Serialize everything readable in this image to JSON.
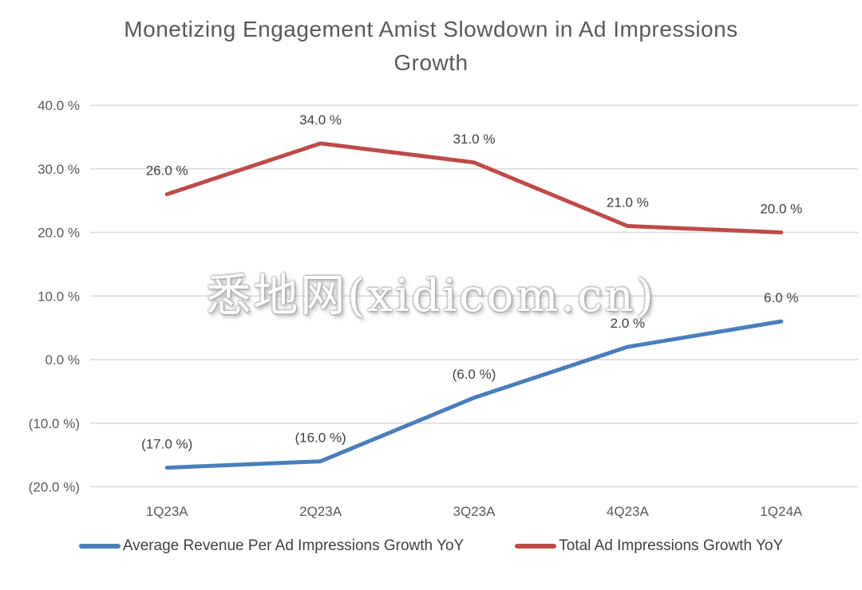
{
  "title": {
    "lines": [
      "Monetizing Engagement Amist Slowdown in Ad Impressions",
      "Growth"
    ]
  },
  "watermark": {
    "text": "悉地网(xidicom.cn)"
  },
  "colors": {
    "blue_series": "#4A7EBB",
    "red_series": "#BE4B48",
    "gridline": "#D9D9D9",
    "axis_text": "#595959",
    "data_label_text": "#404040",
    "title_text": "#595959"
  },
  "chart_data": {
    "type": "line",
    "title": "Monetizing Engagement Amist Slowdown in Ad Impressions Growth",
    "categories": [
      "1Q23A",
      "2Q23A",
      "3Q23A",
      "4Q23A",
      "1Q24A"
    ],
    "series": [
      {
        "name": "Average Revenue Per Ad Impressions Growth YoY",
        "color": "#4A7EBB",
        "values": [
          -17,
          -16,
          -6,
          2,
          6
        ],
        "point_labels": [
          "(17.0 %)",
          "(16.0 %)",
          "(6.0 %)",
          "2.0 %",
          "6.0 %"
        ]
      },
      {
        "name": "Total Ad Impressions Growth YoY",
        "color": "#BE4B48",
        "values": [
          26,
          34,
          31,
          21,
          20
        ],
        "point_labels": [
          "26.0 %",
          "34.0 %",
          "31.0 %",
          "21.0 %",
          "20.0 %"
        ]
      }
    ],
    "xlabel": "",
    "ylabel": "",
    "y_axis": {
      "range": [
        -20,
        40
      ],
      "tick_step": 10,
      "ticks": [
        {
          "value": 40,
          "label": "40.0 %"
        },
        {
          "value": 30,
          "label": "30.0 %"
        },
        {
          "value": 20,
          "label": "20.0 %"
        },
        {
          "value": 10,
          "label": "10.0 %"
        },
        {
          "value": 0,
          "label": "0.0 %"
        },
        {
          "value": -10,
          "label": "(10.0 %)"
        },
        {
          "value": -20,
          "label": "(20.0 %)"
        }
      ]
    },
    "grid": true,
    "legend_position": "bottom"
  }
}
